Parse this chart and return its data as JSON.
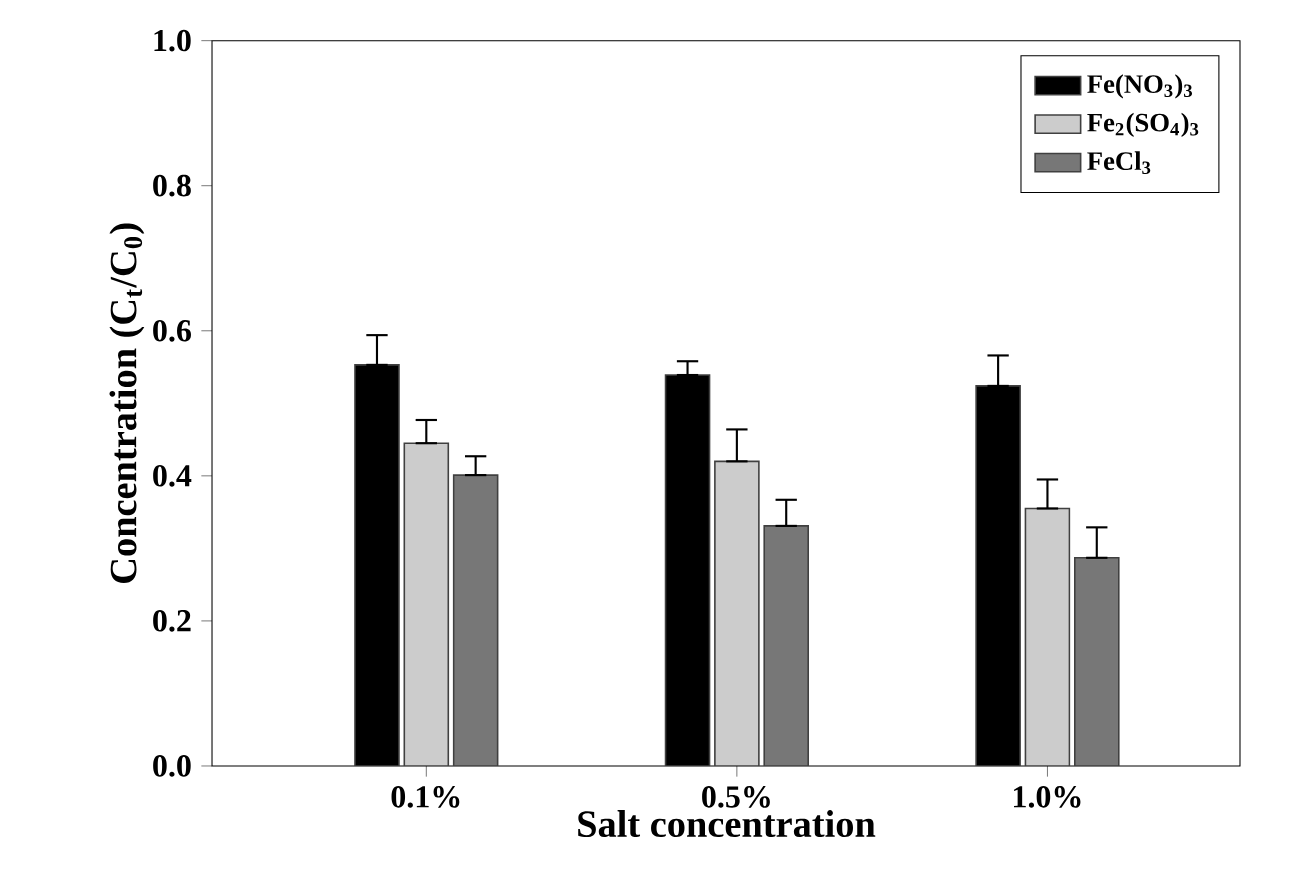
{
  "chart_data": {
    "type": "bar",
    "xlabel": "Salt concentration",
    "ylabel": "Concentration (C$_{t}$/C$_{0}$)",
    "categories": [
      "0.1%",
      "0.5%",
      "1.0%"
    ],
    "series": [
      {
        "name": "Fe(NO$_{3}$)$_{3}$",
        "color": "#000000",
        "values": [
          0.553,
          0.539,
          0.524
        ],
        "errors": [
          [
            0.553,
            0.594
          ],
          [
            0.539,
            0.558
          ],
          [
            0.524,
            0.566
          ]
        ]
      },
      {
        "name": "Fe$_{2}$(SO$_{4}$)$_{3}$",
        "color": "#cccccc",
        "values": [
          0.445,
          0.42,
          0.355
        ],
        "errors": [
          [
            0.445,
            0.477
          ],
          [
            0.42,
            0.464
          ],
          [
            0.355,
            0.395
          ]
        ]
      },
      {
        "name": "FeCl$_{3}$",
        "color": "#777777",
        "values": [
          0.401,
          0.331,
          0.287
        ],
        "errors": [
          [
            0.401,
            0.427
          ],
          [
            0.331,
            0.367
          ],
          [
            0.287,
            0.329
          ]
        ]
      }
    ],
    "ylim": [
      0,
      1
    ],
    "yticks": [
      {
        "value": 0,
        "label": "0.0"
      },
      {
        "value": 0.2,
        "label": "0.2"
      },
      {
        "value": 0.4,
        "label": "0.4"
      },
      {
        "value": 0.6,
        "label": "0.6"
      },
      {
        "value": 0.8,
        "label": "0.8"
      },
      {
        "value": 1,
        "label": "1.0"
      }
    ],
    "legend": "top right"
  }
}
